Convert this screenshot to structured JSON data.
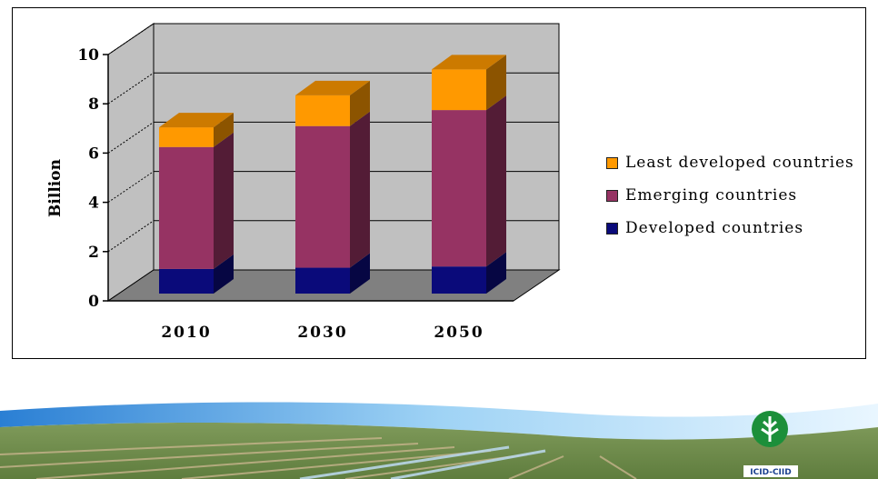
{
  "chart_data": {
    "type": "bar",
    "stacked": true,
    "three_d": true,
    "title": "",
    "xlabel": "",
    "ylabel": "Billion",
    "ylim": [
      0,
      10
    ],
    "yticks": [
      "0",
      "2",
      "4",
      "6",
      "8",
      "10"
    ],
    "categories": [
      "2010",
      "2030",
      "2050"
    ],
    "series": [
      {
        "name": "Developed countries",
        "color": "#0a0a7a",
        "values": [
          1.0,
          1.05,
          1.1
        ]
      },
      {
        "name": "Emerging countries",
        "color": "#963363",
        "values": [
          4.95,
          5.75,
          6.35
        ]
      },
      {
        "name": "Least developed countries",
        "color": "#ff9900",
        "values": [
          0.8,
          1.25,
          1.65
        ]
      }
    ],
    "legend_position": "right",
    "legend_order": [
      2,
      1,
      0
    ],
    "grid": true
  },
  "colors": {
    "wall": "#c0c0c0",
    "floor": "#808080"
  },
  "logo": {
    "text": "ICID-CIID",
    "icon": "wheat-drop-logo-icon"
  }
}
